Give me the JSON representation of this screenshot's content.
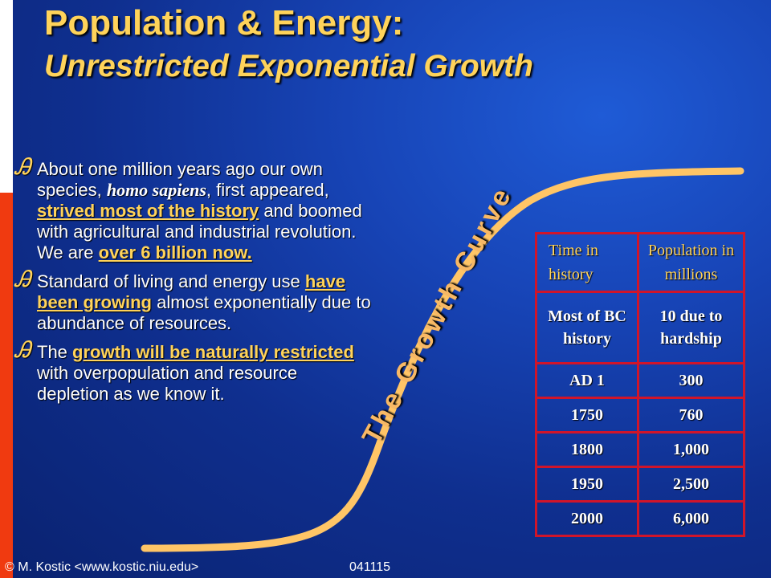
{
  "slide": {
    "title": "Population & Energy:",
    "subtitle": "Unrestricted Exponential Growth"
  },
  "bullets": [
    {
      "bullet_glyph": "Ꭿ",
      "parts": [
        "About one million years ago our own species, ",
        "homo sapiens",
        ", first appeared, ",
        "strived most of the history",
        " and boomed with agricultural and industrial revolution. We are ",
        "over 6 billion now."
      ]
    },
    {
      "bullet_glyph": "Ꭿ",
      "parts": [
        "Standard of living and energy use ",
        "have been growing",
        " almost exponentially due to abundance of resources."
      ]
    },
    {
      "bullet_glyph": "Ꭿ",
      "parts": [
        "The ",
        "growth will be naturally restricted",
        " with overpopulation and resource depletion as we know it."
      ]
    }
  ],
  "curve": {
    "label": "The Growth Curve",
    "color": "#ffc566"
  },
  "table": {
    "headers": [
      "Time in history",
      "Population in millions"
    ],
    "rows": [
      [
        "Most of BC history",
        "10 due to hardship"
      ],
      [
        "AD 1",
        "300"
      ],
      [
        "1750",
        "760"
      ],
      [
        "1800",
        "1,000"
      ],
      [
        "1950",
        "2,500"
      ],
      [
        "2000",
        "6,000"
      ]
    ]
  },
  "footer": {
    "credit": "© M. Kostic <www.kostic.niu.edu>",
    "code": "041115"
  },
  "colors": {
    "title": "#ffd35a",
    "table_border": "#d0152a",
    "accent_bar": "#f03a10"
  }
}
